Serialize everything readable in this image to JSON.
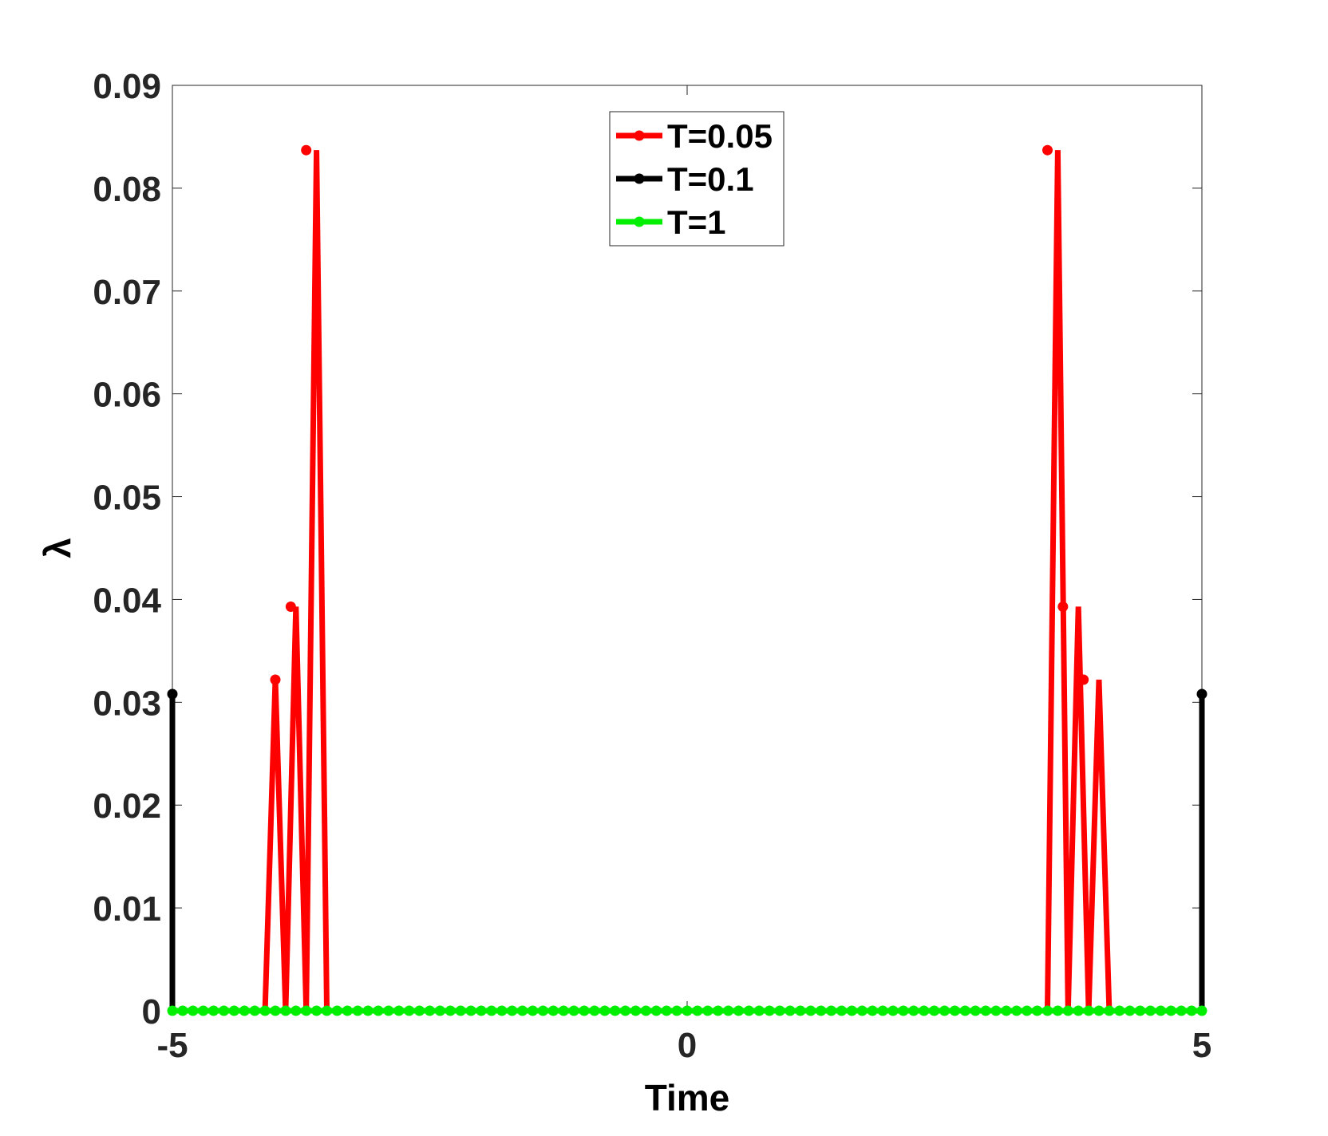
{
  "chart_data": {
    "type": "line",
    "title": "",
    "xlabel": "Time",
    "ylabel": "λ",
    "xlim": [
      -5,
      5
    ],
    "ylim": [
      0,
      0.09
    ],
    "x_ticks": [
      -5,
      0,
      5
    ],
    "x_tick_labels": [
      "-5",
      "0",
      "5"
    ],
    "y_ticks": [
      0,
      0.01,
      0.02,
      0.03,
      0.04,
      0.05,
      0.06,
      0.07,
      0.08,
      0.09
    ],
    "y_tick_labels": [
      "0",
      "0.01",
      "0.02",
      "0.03",
      "0.04",
      "0.05",
      "0.06",
      "0.07",
      "0.08",
      "0.09"
    ],
    "grid": false,
    "legend_position": "top-center",
    "series": [
      {
        "name": "T=0.05",
        "color": "#ff0000",
        "x": [
          -5,
          -4.1,
          -4.0,
          -3.9,
          -3.8,
          -3.7,
          -3.6,
          -3.5,
          3.5,
          3.6,
          3.7,
          3.8,
          3.9,
          4.0,
          4.1,
          5
        ],
        "y": [
          0,
          0,
          0.0322,
          0,
          0.0393,
          0,
          0.0837,
          0,
          0,
          0.0837,
          0,
          0.0393,
          0,
          0.0322,
          0,
          0
        ],
        "markers": [
          [
            -4.0,
            0.0322
          ],
          [
            -3.85,
            0.0393
          ],
          [
            -3.7,
            0.0837
          ],
          [
            3.5,
            0.0837
          ],
          [
            3.65,
            0.0393
          ],
          [
            3.85,
            0.0322
          ]
        ]
      },
      {
        "name": "T=0.1",
        "color": "#000000",
        "x": [
          -5,
          -5,
          -4.99,
          4.99,
          5,
          5
        ],
        "y": [
          0.0308,
          0,
          0,
          0,
          0,
          0.0308
        ],
        "markers": [
          [
            -5,
            0.0308
          ],
          [
            5,
            0.0308
          ]
        ]
      },
      {
        "name": "T=1",
        "color": "#00ee00",
        "x": [
          -5,
          5
        ],
        "y": [
          0,
          0
        ],
        "marker_count": 101
      }
    ]
  }
}
